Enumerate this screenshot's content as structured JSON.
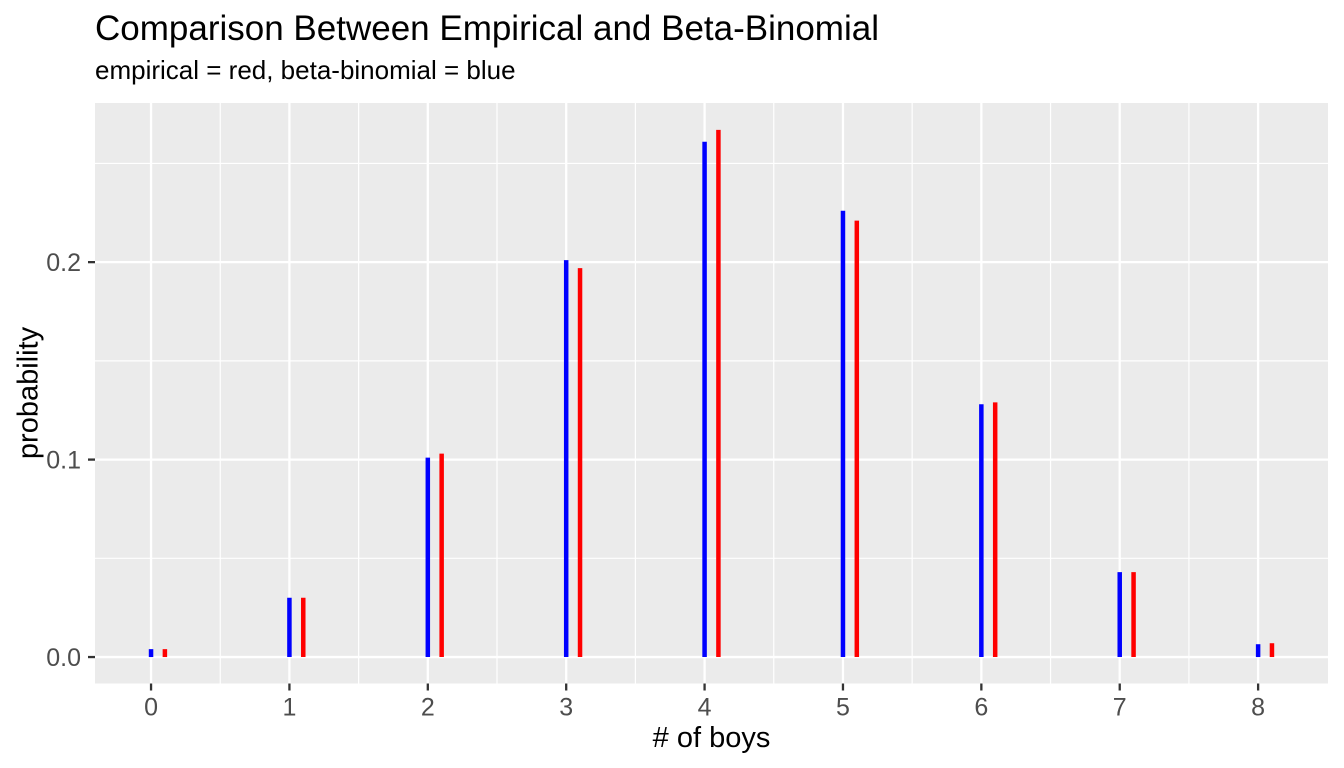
{
  "chart_data": {
    "type": "bar",
    "style": "paired-spike-lines",
    "title": "Comparison Between Empirical and Beta-Binomial",
    "subtitle": "empirical = red, beta-binomial = blue",
    "xlabel": "# of boys",
    "ylabel": "probability",
    "categories": [
      0,
      1,
      2,
      3,
      4,
      5,
      6,
      7,
      8
    ],
    "series": [
      {
        "name": "beta-binomial",
        "color": "#0000FF",
        "x_offset": 0.0,
        "values": [
          0.004,
          0.03,
          0.101,
          0.201,
          0.261,
          0.226,
          0.128,
          0.043,
          0.0065
        ]
      },
      {
        "name": "empirical",
        "color": "#FF0000",
        "x_offset": 0.1,
        "values": [
          0.004,
          0.03,
          0.103,
          0.197,
          0.267,
          0.221,
          0.129,
          0.043,
          0.007
        ]
      }
    ],
    "xlim": [
      -0.405,
      8.505
    ],
    "ylim": [
      -0.0134,
      0.2806
    ],
    "x_ticks": [
      {
        "value": 0,
        "label": "0"
      },
      {
        "value": 1,
        "label": "1"
      },
      {
        "value": 2,
        "label": "2"
      },
      {
        "value": 3,
        "label": "3"
      },
      {
        "value": 4,
        "label": "4"
      },
      {
        "value": 5,
        "label": "5"
      },
      {
        "value": 6,
        "label": "6"
      },
      {
        "value": 7,
        "label": "7"
      },
      {
        "value": 8,
        "label": "8"
      }
    ],
    "y_ticks": [
      {
        "value": 0.0,
        "label": "0.0"
      },
      {
        "value": 0.1,
        "label": "0.1"
      },
      {
        "value": 0.2,
        "label": "0.2"
      }
    ],
    "x_minor": [
      0.5,
      1.5,
      2.5,
      3.5,
      4.5,
      5.5,
      6.5,
      7.5
    ],
    "y_minor": [
      0.05,
      0.15,
      0.25
    ],
    "grid": true,
    "legend_position": "none",
    "colors": {
      "background": "#FFFFFF",
      "panel_bg": "#EBEBEB",
      "grid": "#FFFFFF",
      "axis_text": "#4D4D4D",
      "tick_mark": "#333333",
      "title_text": "#000000"
    }
  }
}
